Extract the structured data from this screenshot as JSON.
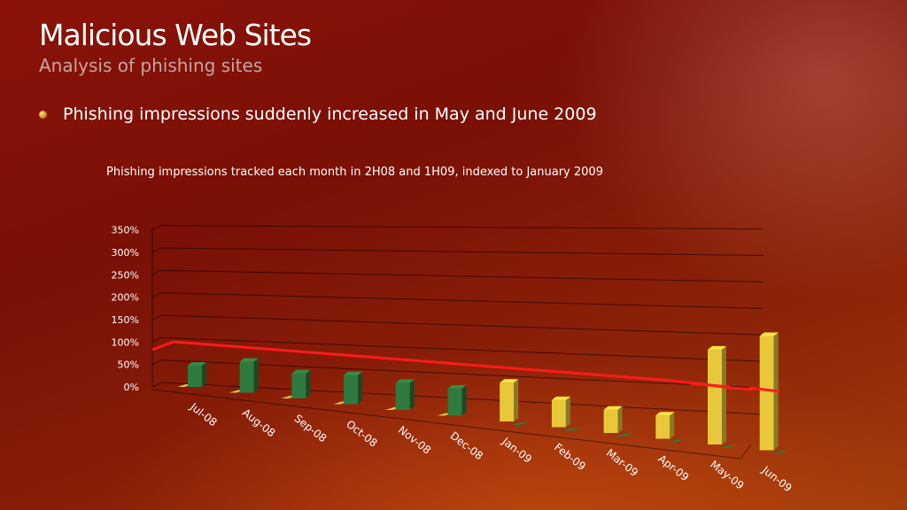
{
  "slide": {
    "title": "Malicious Web Sites",
    "subtitle": "Analysis of phishing sites",
    "bullet": "Phishing impressions suddenly increased in May and June 2009"
  },
  "colors": {
    "green": "#2f7a3e",
    "yellow": "#e8c83a",
    "trend": "#ff1a1a"
  },
  "chart_data": {
    "type": "bar",
    "title": "Phishing impressions tracked each month in 2H08 and 1H09, indexed to January 2009",
    "categories": [
      "Jul-08",
      "Aug-08",
      "Sep-08",
      "Oct-08",
      "Nov-08",
      "Dec-08",
      "Jan-09",
      "Feb-09",
      "Mar-09",
      "Apr-09",
      "May-09",
      "Jun-09"
    ],
    "series": [
      {
        "values": [
          5,
          6,
          5,
          5,
          5,
          5,
          0,
          0,
          0,
          0,
          0,
          0
        ],
        "color": "yellow"
      },
      {
        "values": [
          55,
          80,
          65,
          75,
          70,
          70,
          100,
          70,
          60,
          60,
          245,
          295
        ],
        "color": "mixed"
      }
    ],
    "ylim": [
      0,
      350
    ],
    "yticks": [
      "0%",
      "50%",
      "100%",
      "150%",
      "200%",
      "250%",
      "300%",
      "350%"
    ],
    "trendline": {
      "style": "red-dashed",
      "direction": "decreasing"
    }
  }
}
